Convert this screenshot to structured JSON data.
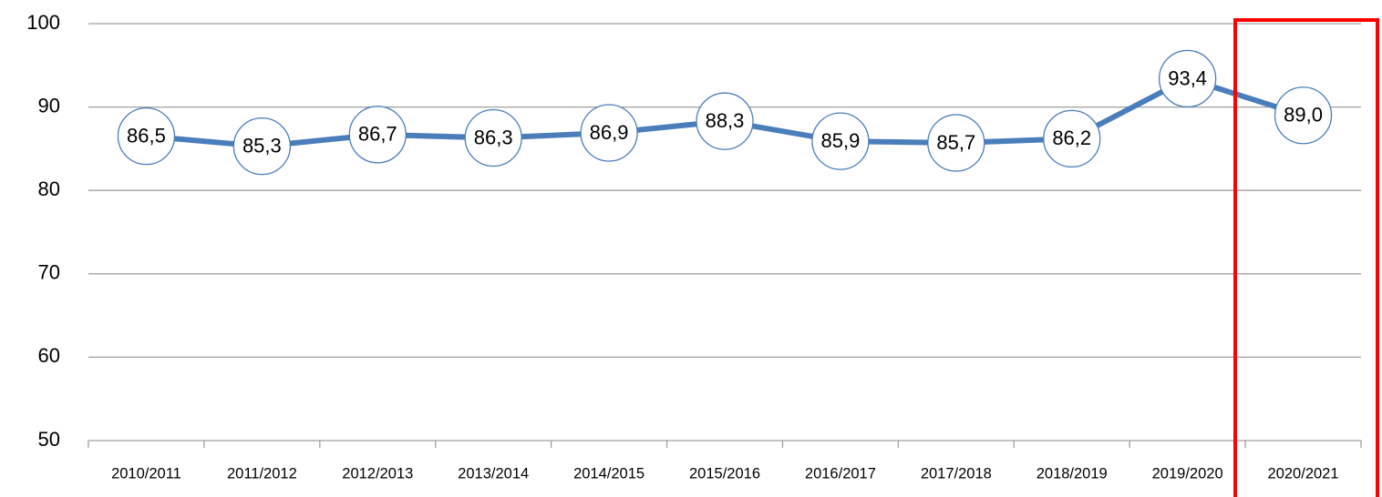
{
  "chart_data": {
    "type": "line",
    "categories": [
      "2010/2011",
      "2011/2012",
      "2012/2013",
      "2013/2014",
      "2014/2015",
      "2015/2016",
      "2016/2017",
      "2017/2018",
      "2018/2019",
      "2019/2020",
      "2020/2021"
    ],
    "values": [
      86.5,
      85.3,
      86.7,
      86.3,
      86.9,
      88.3,
      85.9,
      85.7,
      86.2,
      93.4,
      89.0
    ],
    "value_labels": [
      "86,5",
      "85,3",
      "86,7",
      "86,3",
      "86,9",
      "88,3",
      "85,9",
      "85,7",
      "86,2",
      "93,4",
      "89,0"
    ],
    "color": "#4a7ebb",
    "ylim": [
      50,
      100
    ],
    "yticks": [
      50,
      60,
      70,
      80,
      90,
      100
    ],
    "grid": true
  }
}
